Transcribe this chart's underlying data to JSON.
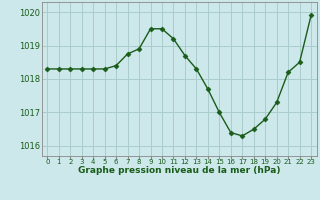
{
  "x": [
    0,
    1,
    2,
    3,
    4,
    5,
    6,
    7,
    8,
    9,
    10,
    11,
    12,
    13,
    14,
    15,
    16,
    17,
    18,
    19,
    20,
    21,
    22,
    23
  ],
  "y": [
    1018.3,
    1018.3,
    1018.3,
    1018.3,
    1018.3,
    1018.3,
    1018.4,
    1018.75,
    1018.9,
    1019.5,
    1019.5,
    1019.2,
    1018.7,
    1018.3,
    1017.7,
    1017.0,
    1016.4,
    1016.3,
    1016.5,
    1016.8,
    1017.3,
    1018.2,
    1018.5,
    1019.9
  ],
  "line_color": "#1a5c1a",
  "marker": "D",
  "marker_size": 2.5,
  "bg_color": "#cce8ea",
  "grid_color": "#aacccc",
  "axis_label_color": "#1a5c1a",
  "tick_label_color": "#1a5c1a",
  "xlabel": "Graphe pression niveau de la mer (hPa)",
  "ylim": [
    1015.7,
    1020.3
  ],
  "yticks": [
    1016,
    1017,
    1018,
    1019,
    1020
  ],
  "xlim": [
    -0.5,
    23.5
  ],
  "xticks": [
    0,
    1,
    2,
    3,
    4,
    5,
    6,
    7,
    8,
    9,
    10,
    11,
    12,
    13,
    14,
    15,
    16,
    17,
    18,
    19,
    20,
    21,
    22,
    23
  ]
}
